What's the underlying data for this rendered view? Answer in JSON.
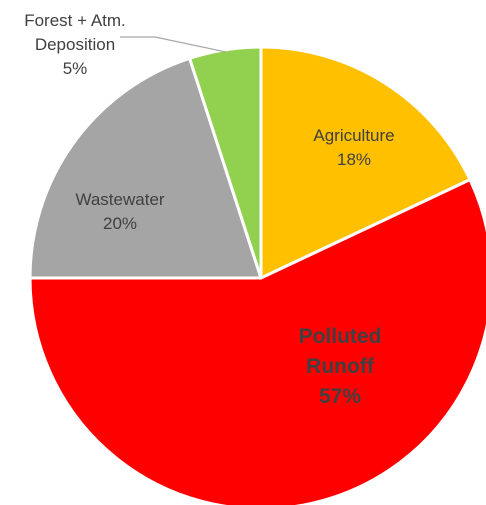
{
  "chart_data": {
    "type": "pie",
    "title": "",
    "slices": [
      {
        "label": "Agriculture",
        "value": 18,
        "value_label": "18%",
        "color": "#FFC000"
      },
      {
        "label": "Polluted Runoff",
        "value": 57,
        "value_label": "57%",
        "color": "#FF0000"
      },
      {
        "label": "Wastewater",
        "value": 20,
        "value_label": "20%",
        "color": "#A5A5A5"
      },
      {
        "label": "Forest + Atm. Deposition",
        "value": 5,
        "value_label": "5%",
        "color": "#92D050"
      }
    ]
  }
}
